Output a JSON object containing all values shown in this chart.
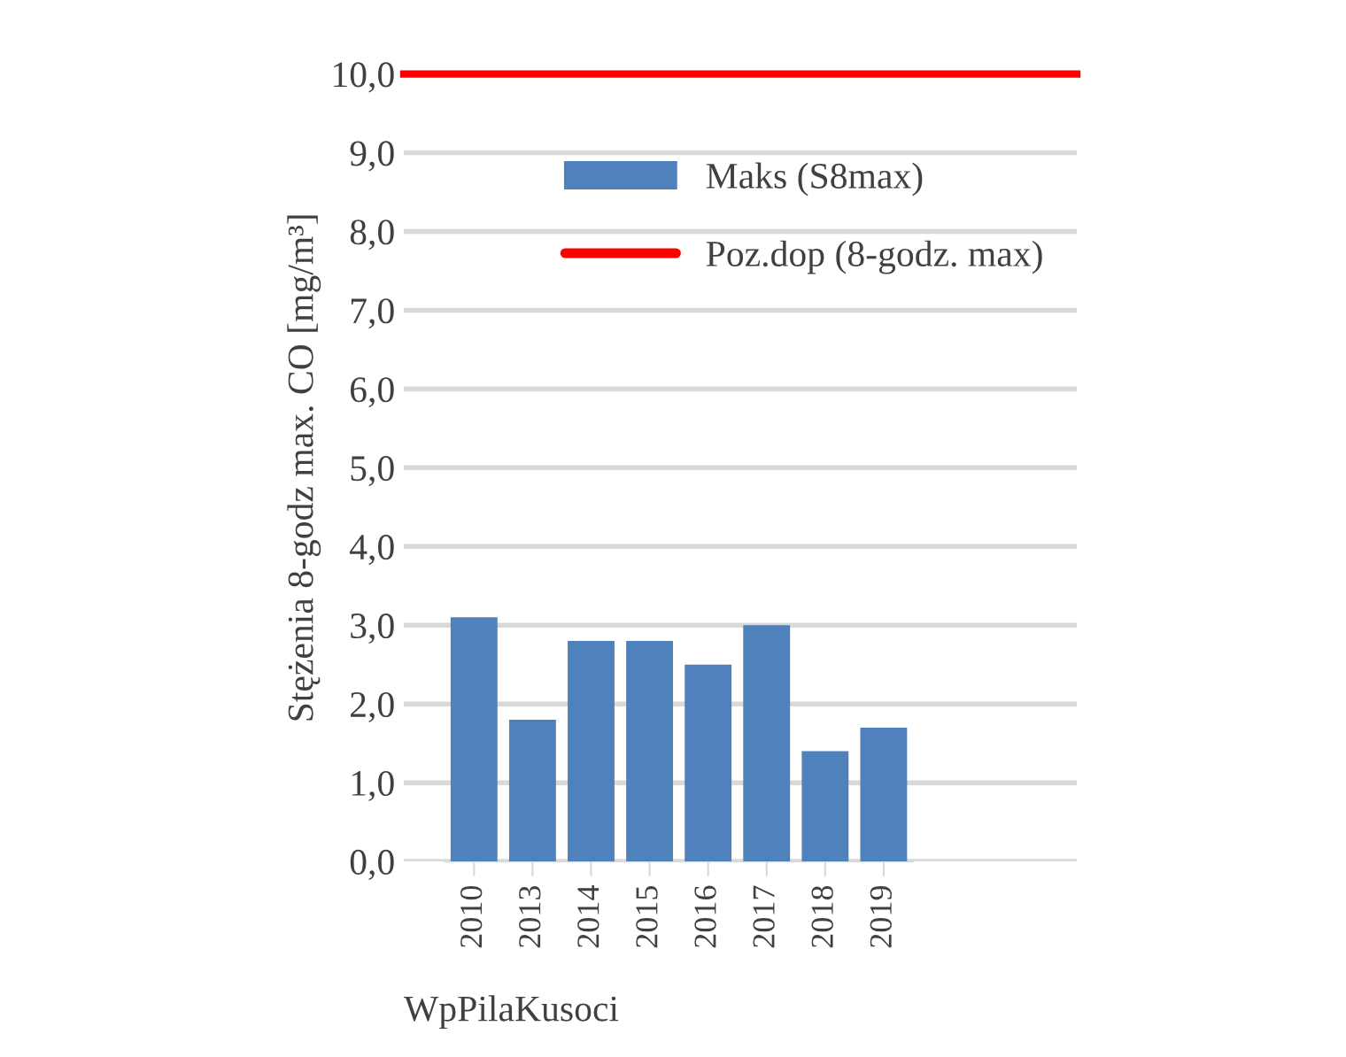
{
  "chart_data": {
    "type": "bar",
    "xlabel": "WpPilaKusoci",
    "ylabel": "Stężenia 8-godz max. CO [mg/m³]",
    "categories": [
      "2010",
      "2013",
      "2014",
      "2015",
      "2016",
      "2017",
      "2018",
      "2019"
    ],
    "series": [
      {
        "name": "Maks (S8max)",
        "color": "#4f81bd",
        "values": [
          3.1,
          1.8,
          2.8,
          2.8,
          2.5,
          3.0,
          1.4,
          1.7
        ]
      }
    ],
    "ref_lines": [
      {
        "axis": "y",
        "value": 10.0,
        "label": "Poz.dop (8-godz. max)",
        "color": "#ff0000",
        "line_style": "solid"
      }
    ],
    "ylim": [
      0,
      10
    ],
    "yticks": [
      {
        "value": 0,
        "label": "0,0"
      },
      {
        "value": 1,
        "label": "1,0"
      },
      {
        "value": 2,
        "label": "2,0"
      },
      {
        "value": 3,
        "label": "3,0"
      },
      {
        "value": 4,
        "label": "4,0"
      },
      {
        "value": 5,
        "label": "5,0"
      },
      {
        "value": 6,
        "label": "6,0"
      },
      {
        "value": 7,
        "label": "7,0"
      },
      {
        "value": 8,
        "label": "8,0"
      },
      {
        "value": 9,
        "label": "9,0"
      },
      {
        "value": 10,
        "label": "10,0"
      }
    ],
    "grid": "y",
    "legend": "top right"
  }
}
